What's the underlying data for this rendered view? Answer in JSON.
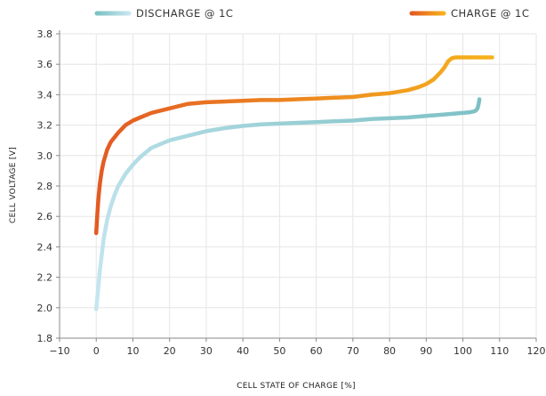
{
  "chart_data": {
    "type": "line",
    "xlabel": "CELL STATE OF CHARGE [%]",
    "ylabel": "CELL VOLTAGE [V]",
    "xlim": [
      -10,
      120
    ],
    "ylim": [
      1.8,
      3.8
    ],
    "xticks": [
      "-10",
      "0",
      "10",
      "20",
      "30",
      "40",
      "50",
      "60",
      "70",
      "80",
      "90",
      "100",
      "110",
      "120"
    ],
    "yticks": [
      "1.8",
      "2.0",
      "2.2",
      "2.4",
      "2.6",
      "2.8",
      "3.0",
      "3.2",
      "3.4",
      "3.6",
      "3.8"
    ],
    "grid": true,
    "legend_position": "top",
    "series": [
      {
        "name": "DISCHARGE @ 1C",
        "colors": [
          "#c5e6f0",
          "#7cc0c4"
        ],
        "x": [
          0,
          0.5,
          1,
          2,
          3,
          4,
          5,
          6,
          8,
          10,
          12,
          15,
          18,
          20,
          25,
          30,
          35,
          40,
          45,
          50,
          55,
          60,
          65,
          70,
          75,
          80,
          85,
          90,
          95,
          100,
          102,
          103,
          103.5,
          104,
          104.3,
          104.5
        ],
        "y": [
          1.99,
          2.12,
          2.25,
          2.45,
          2.58,
          2.67,
          2.74,
          2.8,
          2.88,
          2.94,
          2.99,
          3.05,
          3.08,
          3.1,
          3.13,
          3.16,
          3.18,
          3.195,
          3.205,
          3.21,
          3.215,
          3.22,
          3.225,
          3.23,
          3.24,
          3.245,
          3.25,
          3.26,
          3.27,
          3.28,
          3.285,
          3.29,
          3.295,
          3.31,
          3.34,
          3.37
        ]
      },
      {
        "name": "CHARGE @ 1C",
        "colors": [
          "#e35a24",
          "#f6b21d"
        ],
        "x": [
          0,
          0.3,
          0.6,
          1,
          1.5,
          2,
          3,
          4,
          5,
          6,
          8,
          10,
          12,
          15,
          20,
          25,
          30,
          35,
          40,
          45,
          50,
          55,
          60,
          65,
          70,
          75,
          80,
          85,
          88,
          90,
          92,
          94,
          95,
          96,
          97,
          98,
          100,
          103,
          105,
          108
        ],
        "y": [
          2.49,
          2.62,
          2.72,
          2.82,
          2.9,
          2.96,
          3.04,
          3.09,
          3.12,
          3.15,
          3.2,
          3.23,
          3.25,
          3.28,
          3.31,
          3.34,
          3.35,
          3.355,
          3.36,
          3.365,
          3.365,
          3.37,
          3.375,
          3.38,
          3.385,
          3.4,
          3.41,
          3.43,
          3.45,
          3.47,
          3.5,
          3.55,
          3.58,
          3.62,
          3.64,
          3.645,
          3.645,
          3.645,
          3.645,
          3.645
        ]
      }
    ]
  }
}
